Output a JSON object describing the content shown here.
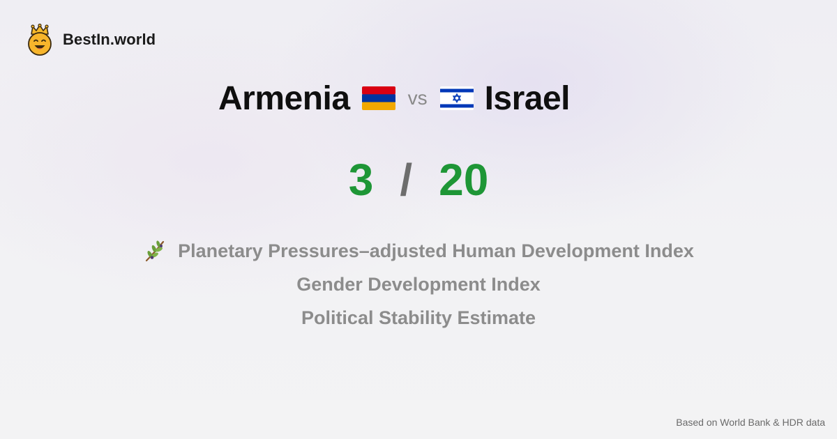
{
  "brand": {
    "name": "BestIn.world",
    "icon": "crowned-smiley-icon"
  },
  "comparison": {
    "country_a": "Armenia",
    "flag_a": "armenia-flag-icon",
    "vs": "vs",
    "country_b": "Israel",
    "flag_b": "israel-flag-icon"
  },
  "score": {
    "a": "3",
    "separator": "/",
    "b": "20",
    "color": "#1e9636"
  },
  "metrics": [
    {
      "icon": "olive-branch-icon",
      "label": "Planetary Pressures–adjusted Human Development Index"
    },
    {
      "label": "Gender Development Index"
    },
    {
      "label": "Political Stability Estimate"
    }
  ],
  "footer": {
    "source": "Based on World Bank & HDR data"
  }
}
